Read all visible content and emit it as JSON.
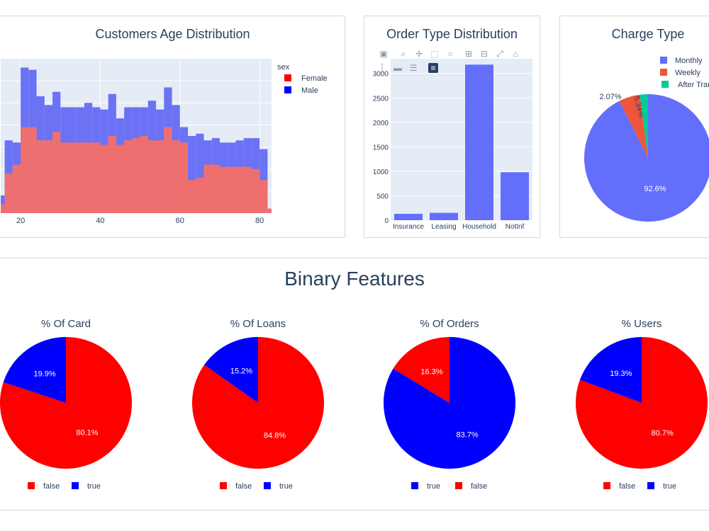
{
  "section": {
    "title": "Binary Features"
  },
  "age_chart": {
    "title": "Customers Age Distribution",
    "legend_title": "sex",
    "legend_items": [
      "Female",
      "Male"
    ],
    "colors": {
      "Female": "#ef6f6f",
      "Male": "#6b72f5",
      "Female_marker": "#ff0000",
      "Male_marker": "#0000ff"
    }
  },
  "order_chart": {
    "title": "Order Type Distribution",
    "modebar": [
      "camera-icon",
      "zoom-icon",
      "pan-icon",
      "box-select-icon",
      "lasso-icon",
      "zoom-in-icon",
      "zoom-out-icon",
      "autoscale-icon",
      "reset-axes-icon",
      "spike-lines-icon",
      "hover-closest-icon",
      "hover-compare-icon",
      "plotly-logo-icon"
    ]
  },
  "charge_chart": {
    "title": "Charge Type"
  },
  "binary_charts": [
    {
      "title": "% Of Card"
    },
    {
      "title": "% Of Loans"
    },
    {
      "title": "% Of Orders"
    },
    {
      "title": "% Users"
    }
  ],
  "chart_data": [
    {
      "type": "bar",
      "subtype": "histogram-overlay",
      "title": "Customers Age Distribution",
      "xlabel": "",
      "ylabel": "",
      "xlim": [
        15,
        83
      ],
      "xticks": [
        20,
        40,
        60,
        80
      ],
      "legend_title": "sex",
      "legend_placement": "right",
      "bin_width": 2,
      "x": [
        15,
        17,
        19,
        21,
        23,
        25,
        27,
        29,
        31,
        33,
        35,
        37,
        39,
        41,
        43,
        45,
        47,
        49,
        51,
        53,
        55,
        57,
        59,
        61,
        63,
        65,
        67,
        69,
        71,
        73,
        75,
        77,
        79,
        81,
        83
      ],
      "series": [
        {
          "name": "Male",
          "color": "#6b72f5",
          "values": [
            40,
            165,
            160,
            330,
            325,
            265,
            245,
            275,
            240,
            240,
            240,
            250,
            240,
            235,
            270,
            215,
            240,
            240,
            240,
            255,
            235,
            285,
            245,
            195,
            175,
            180,
            165,
            170,
            160,
            160,
            165,
            170,
            170,
            145,
            10
          ]
        },
        {
          "name": "Female",
          "color": "#ef6f6f",
          "values": [
            20,
            90,
            110,
            195,
            195,
            165,
            165,
            185,
            160,
            160,
            160,
            160,
            160,
            155,
            175,
            155,
            165,
            170,
            175,
            165,
            165,
            195,
            165,
            160,
            75,
            80,
            110,
            110,
            105,
            105,
            105,
            105,
            100,
            75,
            10
          ]
        }
      ],
      "grid": true
    },
    {
      "type": "bar",
      "title": "Order Type Distribution",
      "categories": [
        "Insurance",
        "Leasing",
        "Household",
        "NotInf"
      ],
      "values": [
        130,
        150,
        3180,
        980
      ],
      "yticks": [
        0,
        500,
        1000,
        1500,
        2000,
        2500,
        3000
      ],
      "ylim": [
        0,
        3300
      ],
      "color": "#636efa",
      "grid": true
    },
    {
      "type": "pie",
      "title": "Charge Type",
      "labels": [
        "Monthly",
        "Weekly",
        "After Transaction"
      ],
      "values": [
        92.6,
        5.34,
        2.07
      ],
      "text_labels": [
        "92.6%",
        "5.34%",
        "2.07%"
      ],
      "colors": [
        "#636efa",
        "#ef553b",
        "#00cc96"
      ],
      "legend_placement": "top-right"
    },
    {
      "type": "pie",
      "title": "% Of Card",
      "labels": [
        "false",
        "true"
      ],
      "values": [
        80.1,
        19.9
      ],
      "text_labels": [
        "80.1%",
        "19.9%"
      ],
      "colors": [
        "#ff0000",
        "#0000ff"
      ],
      "legend_placement": "bottom"
    },
    {
      "type": "pie",
      "title": "% Of Loans",
      "labels": [
        "false",
        "true"
      ],
      "values": [
        84.8,
        15.2
      ],
      "text_labels": [
        "84.8%",
        "15.2%"
      ],
      "colors": [
        "#ff0000",
        "#0000ff"
      ],
      "legend_placement": "bottom"
    },
    {
      "type": "pie",
      "title": "% Of Orders",
      "labels": [
        "true",
        "false"
      ],
      "values": [
        83.7,
        16.3
      ],
      "text_labels": [
        "83.7%",
        "16.3%"
      ],
      "colors": [
        "#0000ff",
        "#ff0000"
      ],
      "legend_placement": "bottom"
    },
    {
      "type": "pie",
      "title": "% Users",
      "labels": [
        "false",
        "true"
      ],
      "values": [
        80.7,
        19.3
      ],
      "text_labels": [
        "80.7%",
        "19.3%"
      ],
      "colors": [
        "#ff0000",
        "#0000ff"
      ],
      "legend_placement": "bottom"
    }
  ]
}
